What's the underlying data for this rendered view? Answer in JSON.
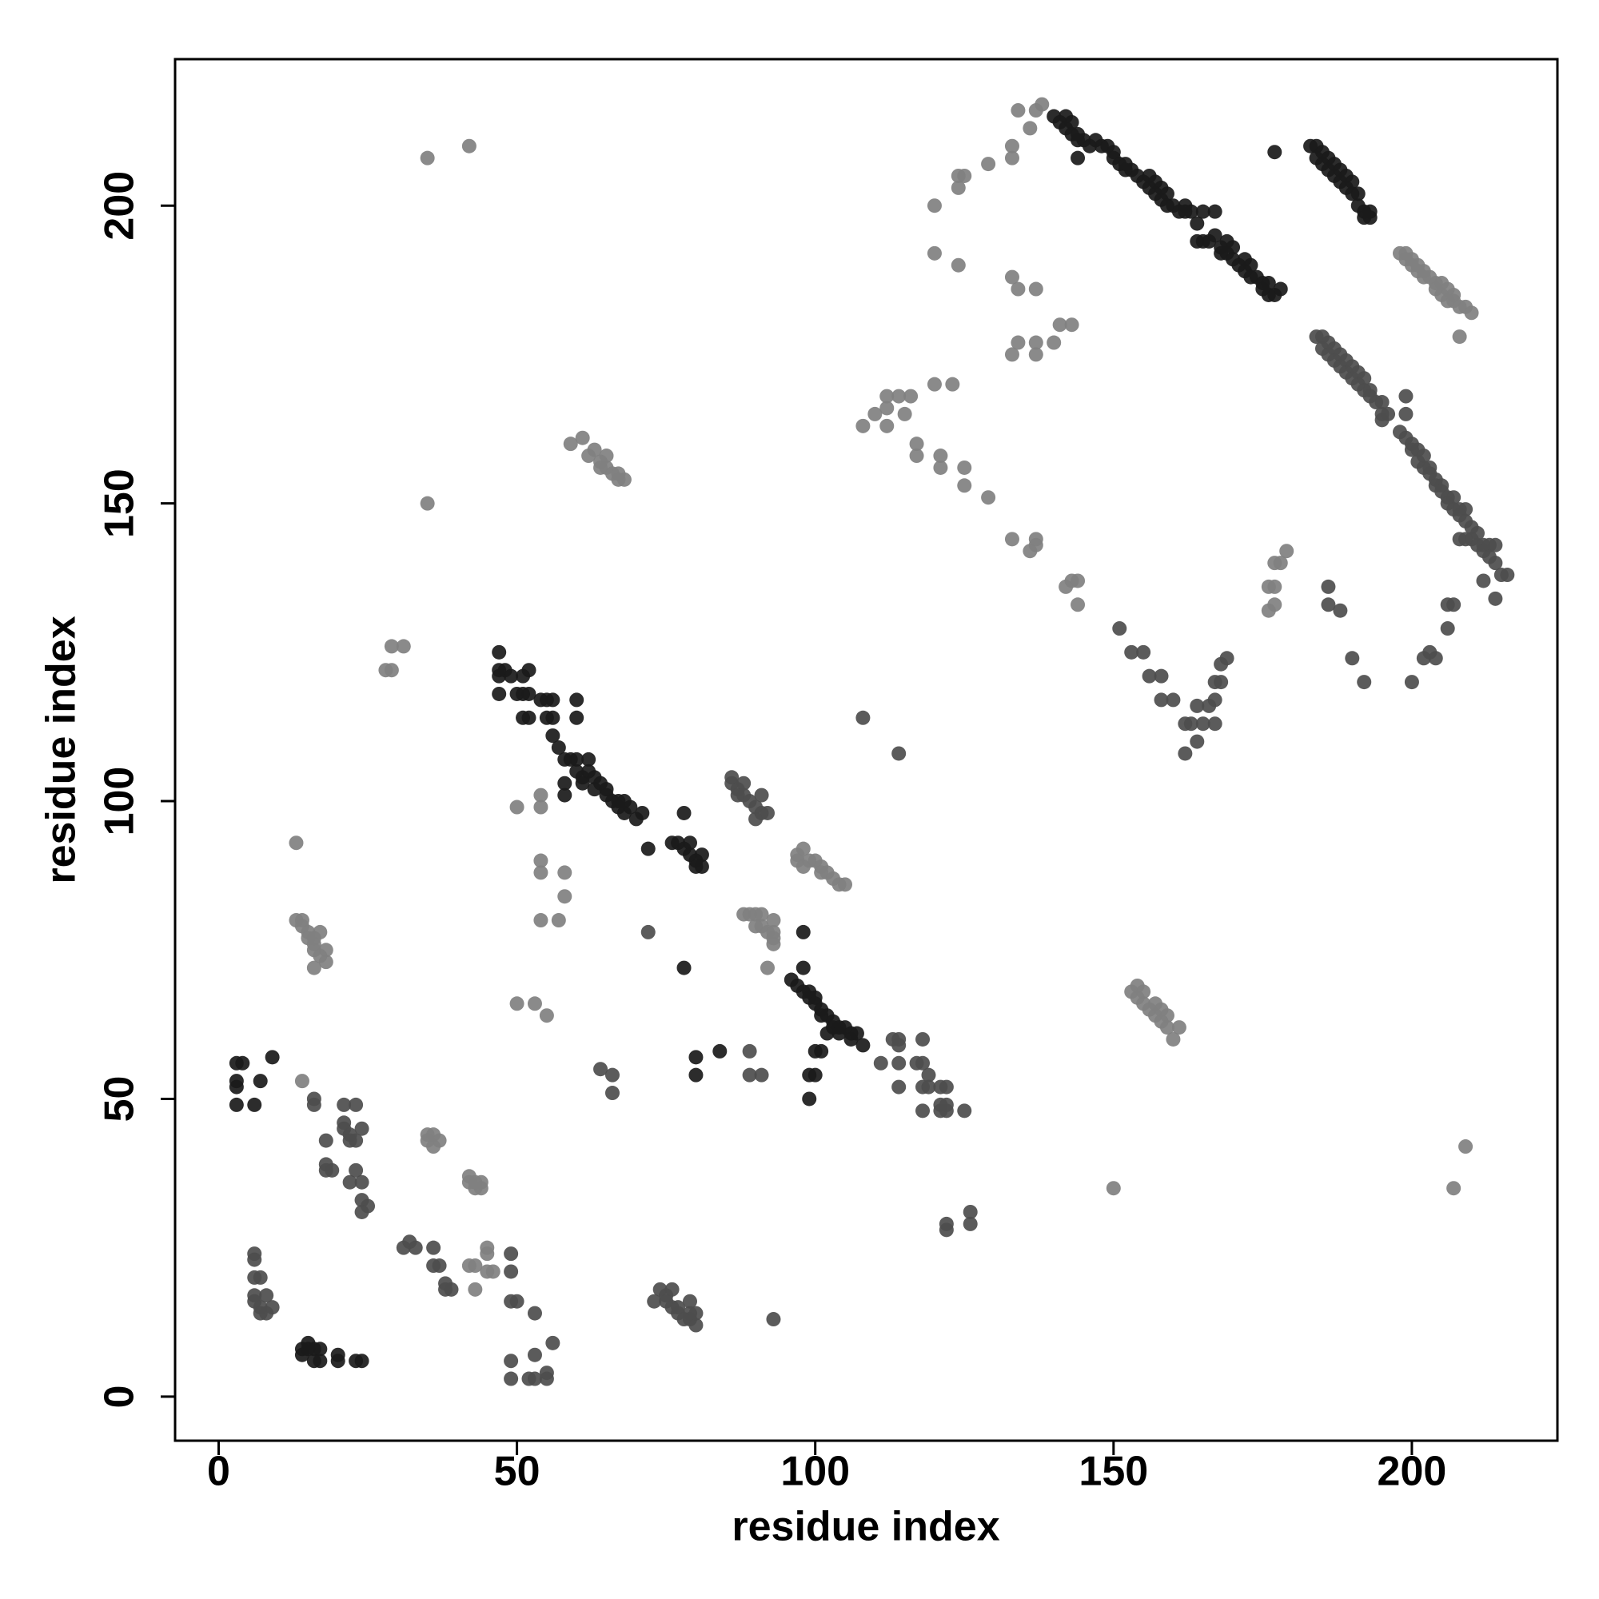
{
  "chart_data": {
    "type": "scatter",
    "xlabel": "residue index",
    "ylabel": "residue index",
    "xlim": [
      -7.3,
      224.4
    ],
    "ylim": [
      -7.4,
      224.6
    ],
    "xticks": [
      0,
      50,
      100,
      150,
      200
    ],
    "yticks": [
      0,
      50,
      100,
      150,
      200
    ],
    "series": [
      {
        "color": "#1a1a1a",
        "x": [
          3,
          4,
          3,
          3,
          3,
          6,
          7,
          9,
          14,
          14,
          15,
          15,
          16,
          17,
          16,
          17,
          20,
          20,
          23,
          24,
          47,
          47,
          47,
          48,
          47,
          49,
          50,
          51,
          51,
          52,
          52,
          51,
          52,
          54,
          55,
          55,
          56,
          56,
          56,
          60,
          60,
          57,
          58,
          58,
          58,
          59,
          60,
          60,
          61,
          61,
          62,
          62,
          63,
          63,
          64,
          65,
          65,
          66,
          67,
          67,
          68,
          68,
          69,
          70,
          71,
          72,
          76,
          77,
          78,
          78,
          79,
          79,
          80,
          80,
          81,
          81,
          78,
          80,
          80,
          84,
          96,
          97,
          98,
          98,
          98,
          99,
          99,
          100,
          100,
          101,
          101,
          102,
          103,
          103,
          104,
          104,
          105,
          106,
          106,
          107,
          108,
          102,
          101,
          100,
          100,
          99,
          99,
          140,
          141,
          142,
          142,
          143,
          143,
          144,
          144,
          145,
          144,
          146,
          147,
          148,
          149,
          150,
          150,
          151,
          152,
          152,
          153,
          154,
          155,
          156,
          156,
          157,
          157,
          158,
          158,
          159,
          159,
          160,
          161,
          162,
          162,
          163,
          164,
          164,
          165,
          165,
          166,
          167,
          167,
          168,
          168,
          169,
          169,
          170,
          170,
          171,
          172,
          172,
          173,
          173,
          174,
          175,
          175,
          176,
          176,
          177,
          178,
          177,
          183,
          184,
          184,
          185,
          185,
          186,
          186,
          187,
          187,
          188,
          188,
          189,
          189,
          190,
          190,
          191,
          191,
          192,
          192,
          193,
          193
        ],
        "values": [
          56,
          56,
          53,
          52,
          49,
          49,
          53,
          57,
          8,
          7,
          8,
          9,
          8,
          8,
          6,
          6,
          7,
          6,
          6,
          6,
          125,
          122,
          121,
          122,
          118,
          121,
          118,
          118,
          121,
          122,
          118,
          114,
          114,
          117,
          117,
          114,
          117,
          114,
          111,
          117,
          114,
          109,
          107,
          103,
          101,
          107,
          107,
          105,
          104,
          103,
          107,
          105,
          104,
          102,
          103,
          102,
          101,
          100,
          100,
          99,
          100,
          98,
          99,
          97,
          98,
          92,
          93,
          93,
          92,
          98,
          91,
          93,
          90,
          89,
          91,
          89,
          72,
          57,
          54,
          58,
          70,
          69,
          68,
          72,
          78,
          68,
          67,
          67,
          66,
          65,
          64,
          64,
          63,
          62,
          62,
          61,
          62,
          61,
          60,
          61,
          59,
          61,
          58,
          58,
          54,
          54,
          50,
          215,
          214,
          215,
          213,
          214,
          212,
          212,
          211,
          211,
          208,
          210,
          211,
          210,
          210,
          209,
          208,
          207,
          207,
          206,
          206,
          205,
          204,
          205,
          203,
          204,
          202,
          203,
          201,
          202,
          200,
          200,
          199,
          200,
          199,
          199,
          197,
          194,
          194,
          199,
          194,
          195,
          199,
          193,
          192,
          194,
          192,
          191,
          193,
          190,
          191,
          189,
          190,
          188,
          188,
          187,
          186,
          187,
          185,
          185,
          186,
          209,
          210,
          210,
          208,
          209,
          207,
          208,
          206,
          207,
          205,
          206,
          204,
          205,
          203,
          204,
          202,
          202,
          200,
          199,
          198,
          199,
          198
        ]
      },
      {
        "color": "#4d4d4d",
        "x": [
          6,
          6,
          6,
          7,
          6,
          6,
          7,
          7,
          8,
          8,
          9,
          16,
          16,
          18,
          18,
          18,
          19,
          21,
          21,
          21,
          22,
          22,
          23,
          23,
          24,
          23,
          22,
          24,
          25,
          24,
          24,
          31,
          32,
          33,
          36,
          36,
          37,
          38,
          38,
          39,
          49,
          49,
          49,
          50,
          49,
          49,
          53,
          52,
          53,
          53,
          55,
          55,
          56,
          64,
          66,
          66,
          72,
          73,
          74,
          75,
          75,
          76,
          76,
          77,
          77,
          78,
          79,
          79,
          80,
          80,
          79,
          93,
          86,
          86,
          87,
          87,
          88,
          88,
          89,
          90,
          90,
          91,
          91,
          92,
          89,
          89,
          91,
          108,
          114,
          111,
          113,
          114,
          114,
          114,
          114,
          118,
          117,
          118,
          119,
          118,
          119,
          118,
          121,
          121,
          122,
          121,
          122,
          122,
          125,
          122,
          122,
          126,
          126,
          184,
          185,
          185,
          186,
          186,
          187,
          187,
          188,
          188,
          189,
          189,
          190,
          190,
          191,
          191,
          192,
          192,
          193,
          193,
          194,
          195,
          195,
          195,
          196,
          198,
          199,
          199,
          199,
          200,
          200,
          201,
          201,
          202,
          202,
          203,
          203,
          204,
          204,
          205,
          205,
          206,
          206,
          207,
          207,
          208,
          208,
          209,
          209,
          210,
          210,
          211,
          211,
          212,
          212,
          213,
          213,
          214,
          214,
          216,
          215,
          214,
          212,
          208,
          209,
          206,
          207,
          206,
          204,
          203,
          202,
          200,
          190,
          192,
          186,
          186,
          188,
          151,
          153,
          155,
          156,
          158,
          158,
          160,
          162,
          162,
          163,
          164,
          164,
          165,
          166,
          167,
          167,
          167,
          168,
          168,
          169
        ],
        "values": [
          24,
          23,
          20,
          20,
          17,
          16,
          15,
          14,
          14,
          17,
          15,
          50,
          49,
          43,
          39,
          38,
          38,
          49,
          46,
          45,
          44,
          43,
          43,
          49,
          45,
          38,
          36,
          33,
          32,
          31,
          36,
          25,
          26,
          25,
          25,
          22,
          22,
          19,
          18,
          18,
          24,
          21,
          16,
          16,
          6,
          3,
          3,
          3,
          7,
          14,
          4,
          3,
          9,
          55,
          54,
          51,
          78,
          16,
          18,
          17,
          16,
          18,
          15,
          15,
          14,
          13,
          13,
          14,
          12,
          14,
          16,
          13,
          104,
          103,
          102,
          101,
          103,
          101,
          100,
          99,
          97,
          101,
          98,
          98,
          58,
          54,
          54,
          114,
          108,
          56,
          60,
          60,
          59,
          56,
          52,
          60,
          56,
          56,
          54,
          52,
          52,
          48,
          52,
          49,
          52,
          48,
          48,
          49,
          48,
          29,
          28,
          31,
          29,
          178,
          178,
          176,
          177,
          175,
          176,
          174,
          175,
          173,
          174,
          172,
          173,
          171,
          172,
          170,
          171,
          169,
          169,
          168,
          167,
          167,
          165,
          164,
          165,
          162,
          168,
          165,
          161,
          160,
          159,
          159,
          157,
          158,
          156,
          156,
          155,
          154,
          153,
          153,
          152,
          151,
          150,
          151,
          149,
          149,
          148,
          149,
          147,
          146,
          144,
          145,
          143,
          143,
          142,
          143,
          141,
          143,
          140,
          138,
          138,
          134,
          137,
          144,
          144,
          133,
          133,
          129,
          124,
          125,
          124,
          120,
          124,
          120,
          136,
          133,
          132,
          129,
          125,
          125,
          121,
          121,
          117,
          117,
          108,
          113,
          113,
          110,
          116,
          113,
          116,
          117,
          113,
          120,
          123,
          120,
          124
        ]
      },
      {
        "color": "#808080",
        "x": [
          13,
          14,
          14,
          15,
          15,
          16,
          16,
          16,
          17,
          17,
          18,
          18,
          16,
          14,
          13,
          28,
          29,
          29,
          31,
          35,
          35,
          36,
          36,
          37,
          42,
          42,
          43,
          43,
          44,
          44,
          42,
          43,
          43,
          45,
          45,
          46,
          45,
          35,
          42,
          35,
          50,
          53,
          55,
          50,
          54,
          54,
          54,
          54,
          54,
          57,
          58,
          58,
          59,
          61,
          62,
          63,
          64,
          64,
          65,
          65,
          66,
          67,
          67,
          68,
          88,
          89,
          90,
          90,
          91,
          91,
          92,
          93,
          93,
          93,
          92,
          93,
          97,
          97,
          98,
          98,
          99,
          100,
          101,
          101,
          102,
          103,
          104,
          105,
          108,
          110,
          112,
          112,
          112,
          114,
          115,
          116,
          117,
          117,
          120,
          121,
          121,
          123,
          125,
          125,
          129,
          124,
          120,
          120,
          124,
          124,
          125,
          129,
          133,
          133,
          134,
          136,
          137,
          138,
          133,
          134,
          137,
          133,
          134,
          137,
          137,
          140,
          141,
          143,
          133,
          136,
          137,
          137,
          142,
          143,
          144,
          144,
          198,
          199,
          199,
          200,
          200,
          201,
          201,
          202,
          202,
          203,
          204,
          204,
          205,
          205,
          206,
          206,
          207,
          207,
          208,
          209,
          210,
          208,
          176,
          176,
          177,
          177,
          177,
          178,
          179,
          153,
          154,
          154,
          155,
          155,
          156,
          157,
          157,
          158,
          158,
          159,
          159,
          160,
          161,
          150,
          207,
          209
        ],
        "values": [
          80,
          80,
          79,
          78,
          77,
          77,
          76,
          75,
          78,
          74,
          73,
          75,
          72,
          53,
          93,
          122,
          122,
          126,
          126,
          44,
          43,
          44,
          42,
          43,
          37,
          36,
          36,
          35,
          36,
          35,
          22,
          22,
          18,
          25,
          21,
          21,
          24,
          208,
          210,
          150,
          66,
          66,
          64,
          99,
          101,
          99,
          90,
          88,
          80,
          80,
          84,
          88,
          160,
          161,
          158,
          159,
          157,
          156,
          158,
          156,
          155,
          155,
          154,
          154,
          81,
          81,
          81,
          79,
          81,
          79,
          78,
          77,
          76,
          80,
          72,
          78,
          91,
          90,
          92,
          89,
          90,
          90,
          89,
          88,
          88,
          87,
          86,
          86,
          163,
          165,
          163,
          166,
          168,
          168,
          165,
          168,
          160,
          158,
          170,
          158,
          156,
          170,
          156,
          153,
          151,
          190,
          192,
          200,
          203,
          205,
          205,
          207,
          208,
          210,
          216,
          213,
          216,
          217,
          188,
          186,
          186,
          175,
          177,
          175,
          177,
          177,
          180,
          180,
          144,
          142,
          143,
          144,
          136,
          137,
          133,
          137,
          192,
          192,
          191,
          191,
          190,
          190,
          189,
          189,
          188,
          188,
          187,
          186,
          187,
          185,
          186,
          184,
          185,
          184,
          183,
          183,
          182,
          178,
          136,
          132,
          140,
          136,
          133,
          140,
          142,
          68,
          69,
          67,
          68,
          66,
          65,
          66,
          64,
          65,
          63,
          64,
          62,
          60,
          62,
          35,
          35,
          42
        ]
      }
    ]
  }
}
